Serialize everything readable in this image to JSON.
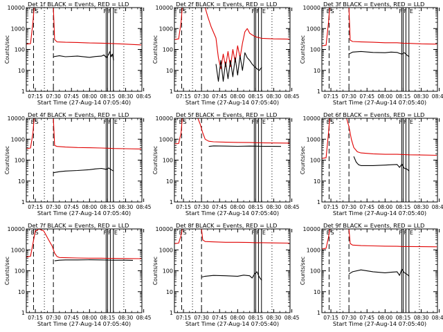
{
  "figure": {
    "xlabel": "Start Time (27-Aug-14 07:05:40)",
    "ylabel": "Counts/sec",
    "x_tick_labels": [
      "07:15",
      "07:30",
      "07:45",
      "08:00",
      "08:15",
      "08:30",
      "08:45"
    ],
    "y_tick_labels": [
      "1",
      "10",
      "100",
      "1000",
      "10000"
    ],
    "colors": {
      "events": "#000000",
      "lld": "#e00000",
      "frame": "#000000"
    }
  },
  "chart_data": [
    {
      "type": "line",
      "title": "Det  1f BLACK = Events, RED = LLD",
      "xlabel": "Start Time (27-Aug-14 07:05:40)",
      "ylabel": "Counts/sec",
      "x_unit": "minutes",
      "xlim": [
        7.5,
        103.5
      ],
      "ylim": [
        1,
        10000
      ],
      "yscale": "log",
      "markers": {
        "dashed": [
          13.5,
          30
        ],
        "dotted": [
          22.5,
          88.5
        ],
        "solid": [
          73.8,
          75,
          77.3,
          79.8
        ]
      },
      "marker_labels": [
        "E",
        "S",
        "F",
        "F",
        "E"
      ],
      "series": [
        {
          "name": "LLD",
          "color": "red",
          "x": [
            7.5,
            11,
            13,
            14,
            15,
            30,
            31,
            33,
            40,
            50,
            60,
            70,
            75,
            80,
            90,
            103
          ],
          "y": [
            180,
            190,
            2000,
            10000,
            10000,
            10000,
            300,
            230,
            220,
            215,
            205,
            200,
            195,
            190,
            180,
            165
          ]
        },
        {
          "name": "Events",
          "color": "black",
          "x": [
            30,
            35,
            40,
            50,
            60,
            65,
            70,
            72,
            74,
            76,
            77,
            78,
            79,
            80
          ],
          "y": [
            45,
            50,
            45,
            48,
            42,
            46,
            48,
            55,
            40,
            60,
            80,
            45,
            60,
            30
          ]
        }
      ]
    },
    {
      "type": "line",
      "title": "Det  2f BLACK = Events, RED = LLD",
      "xlabel": "Start Time (27-Aug-14 07:05:40)",
      "ylabel": "Counts/sec",
      "x_unit": "minutes",
      "xlim": [
        7.5,
        103.5
      ],
      "ylim": [
        1,
        10000
      ],
      "yscale": "log",
      "markers": {
        "dashed": [
          13.5,
          30
        ],
        "dotted": [
          22.5,
          88.5
        ],
        "solid": [
          73.8,
          75,
          77.3,
          79.8
        ]
      },
      "marker_labels": [
        "E",
        "S",
        "F",
        "F",
        "E"
      ],
      "series": [
        {
          "name": "LLD",
          "color": "red",
          "x": [
            7.5,
            11,
            13,
            14,
            15,
            33,
            35,
            38,
            42,
            44,
            46,
            48,
            50,
            52,
            54,
            56,
            58,
            60,
            62,
            64,
            66,
            68,
            70,
            72,
            75,
            80,
            90,
            103
          ],
          "y": [
            300,
            320,
            2000,
            10000,
            10000,
            10000,
            4000,
            1200,
            350,
            40,
            12,
            60,
            15,
            80,
            15,
            100,
            25,
            150,
            40,
            200,
            700,
            1000,
            600,
            500,
            400,
            340,
            320,
            310
          ]
        },
        {
          "name": "Events",
          "color": "black",
          "x": [
            42,
            44,
            46,
            48,
            50,
            52,
            54,
            56,
            58,
            60,
            62,
            64,
            66,
            68,
            70,
            72,
            74,
            76,
            78,
            80
          ],
          "y": [
            20,
            3,
            30,
            3,
            25,
            4,
            30,
            5,
            40,
            6,
            50,
            10,
            70,
            40,
            30,
            20,
            15,
            12,
            10,
            14
          ]
        }
      ]
    },
    {
      "type": "line",
      "title": "Det  3f BLACK = Events, RED = LLD",
      "xlabel": "Start Time (27-Aug-14 07:05:40)",
      "ylabel": "Counts/sec",
      "x_unit": "minutes",
      "xlim": [
        7.5,
        103.5
      ],
      "ylim": [
        1,
        10000
      ],
      "yscale": "log",
      "markers": {
        "dashed": [
          13.5,
          30
        ],
        "dotted": [
          22.5,
          88.5
        ],
        "solid": [
          73.8,
          75,
          77.3,
          79.8
        ]
      },
      "marker_labels": [
        "E",
        "S",
        "F",
        "F",
        "E"
      ],
      "series": [
        {
          "name": "LLD",
          "color": "red",
          "x": [
            7.5,
            11,
            13,
            14,
            15,
            30,
            31,
            33,
            40,
            50,
            60,
            70,
            75,
            80,
            90,
            103
          ],
          "y": [
            150,
            160,
            2000,
            10000,
            10000,
            10000,
            280,
            240,
            230,
            220,
            210,
            210,
            200,
            195,
            185,
            180
          ]
        },
        {
          "name": "Events",
          "color": "black",
          "x": [
            30,
            33,
            40,
            50,
            60,
            65,
            70,
            72,
            74,
            76,
            78,
            80
          ],
          "y": [
            60,
            75,
            80,
            72,
            70,
            75,
            72,
            65,
            60,
            70,
            55,
            45
          ]
        }
      ]
    },
    {
      "type": "line",
      "title": "Det  4f BLACK = Events, RED = LLD",
      "xlabel": "Start Time (27-Aug-14 07:05:40)",
      "ylabel": "Counts/sec",
      "x_unit": "minutes",
      "xlim": [
        7.5,
        103.5
      ],
      "ylim": [
        1,
        10000
      ],
      "yscale": "log",
      "markers": {
        "dashed": [
          13.5,
          30
        ],
        "dotted": [
          22.5,
          88.5
        ],
        "solid": [
          73.8,
          75,
          77.3,
          79.8
        ]
      },
      "marker_labels": [
        "E",
        "S",
        "F",
        "F",
        "E"
      ],
      "series": [
        {
          "name": "LLD",
          "color": "red",
          "x": [
            7.5,
            11,
            13,
            14,
            15,
            30,
            31,
            33,
            40,
            50,
            60,
            70,
            75,
            80,
            90,
            103
          ],
          "y": [
            350,
            380,
            2000,
            10000,
            10000,
            10000,
            500,
            450,
            420,
            400,
            390,
            380,
            370,
            360,
            350,
            340
          ]
        },
        {
          "name": "Events",
          "color": "black",
          "x": [
            30,
            35,
            40,
            50,
            60,
            65,
            70,
            72,
            74,
            76,
            78,
            80
          ],
          "y": [
            25,
            28,
            30,
            32,
            35,
            38,
            40,
            38,
            36,
            42,
            35,
            30
          ]
        }
      ]
    },
    {
      "type": "line",
      "title": "Det  5f BLACK = Events, RED = LLD",
      "xlabel": "Start Time (27-Aug-14 07:05:40)",
      "ylabel": "Counts/sec",
      "x_unit": "minutes",
      "xlim": [
        7.5,
        103.5
      ],
      "ylim": [
        1,
        10000
      ],
      "yscale": "log",
      "markers": {
        "dashed": [
          13.5,
          30
        ],
        "dotted": [
          22.5,
          88.5
        ],
        "solid": [
          73.8,
          75,
          77.3,
          79.8
        ]
      },
      "marker_labels": [
        "E",
        "S",
        "F",
        "F",
        "E"
      ],
      "series": [
        {
          "name": "LLD",
          "color": "red",
          "x": [
            7.5,
            11,
            13,
            14,
            15,
            27,
            29,
            31,
            33,
            36,
            40,
            50,
            60,
            70,
            75,
            80,
            90,
            103
          ],
          "y": [
            600,
            620,
            2000,
            10000,
            10000,
            10000,
            5000,
            2000,
            1000,
            800,
            750,
            720,
            700,
            690,
            680,
            670,
            660,
            650
          ]
        },
        {
          "name": "Events",
          "color": "black",
          "x": [
            36,
            40,
            50,
            60,
            70,
            75,
            80,
            90,
            96
          ],
          "y": [
            450,
            480,
            470,
            460,
            470,
            465,
            460,
            455,
            450
          ]
        }
      ]
    },
    {
      "type": "line",
      "title": "Det  6f BLACK = Events, RED = LLD",
      "xlabel": "Start Time (27-Aug-14 07:05:40)",
      "ylabel": "Counts/sec",
      "x_unit": "minutes",
      "xlim": [
        7.5,
        103.5
      ],
      "ylim": [
        1,
        10000
      ],
      "yscale": "log",
      "markers": {
        "dashed": [
          13.5,
          30
        ],
        "dotted": [
          22.5,
          88.5
        ],
        "solid": [
          73.8,
          75,
          77.3,
          79.8
        ]
      },
      "marker_labels": [
        "E",
        "S",
        "F",
        "F",
        "E"
      ],
      "series": [
        {
          "name": "LLD",
          "color": "red",
          "x": [
            7.5,
            11,
            13,
            14,
            15,
            28,
            30,
            32,
            34,
            37,
            40,
            50,
            60,
            70,
            75,
            80,
            90,
            103
          ],
          "y": [
            120,
            130,
            2000,
            10000,
            10000,
            10000,
            4000,
            1000,
            400,
            250,
            220,
            200,
            190,
            190,
            185,
            180,
            175,
            170
          ]
        },
        {
          "name": "Events",
          "color": "black",
          "x": [
            34,
            36,
            38,
            40,
            50,
            60,
            65,
            70,
            72,
            74,
            76,
            78,
            80
          ],
          "y": [
            150,
            80,
            60,
            55,
            55,
            58,
            60,
            62,
            45,
            65,
            40,
            38,
            30
          ]
        }
      ]
    },
    {
      "type": "line",
      "title": "Det  7f BLACK = Events, RED = LLD",
      "xlabel": "Start Time (27-Aug-14 07:05:40)",
      "ylabel": "Counts/sec",
      "x_unit": "minutes",
      "xlim": [
        7.5,
        103.5
      ],
      "ylim": [
        1,
        10000
      ],
      "yscale": "log",
      "markers": {
        "dashed": [
          13.5,
          30
        ],
        "dotted": [
          22.5,
          88.5
        ],
        "solid": [
          73.8,
          75,
          77.3,
          79.8
        ]
      },
      "marker_labels": [
        "E",
        "S",
        "F",
        "F",
        "E"
      ],
      "series": [
        {
          "name": "LLD",
          "color": "red",
          "x": [
            7.5,
            11,
            13,
            15,
            18,
            22,
            26,
            29,
            31,
            33,
            35,
            40,
            50,
            60,
            70,
            75,
            80,
            90,
            103
          ],
          "y": [
            450,
            500,
            2000,
            8000,
            10000,
            8000,
            3000,
            1500,
            700,
            480,
            430,
            420,
            410,
            400,
            400,
            395,
            390,
            385,
            380
          ]
        },
        {
          "name": "Events",
          "color": "black",
          "x": [
            31,
            35,
            40,
            50,
            60,
            70,
            75,
            80,
            90,
            96
          ],
          "y": [
            300,
            320,
            330,
            330,
            335,
            330,
            325,
            320,
            320,
            315
          ]
        }
      ]
    },
    {
      "type": "line",
      "title": "Det  8f BLACK = Events, RED = LLD",
      "xlabel": "Start Time (27-Aug-14 07:05:40)",
      "ylabel": "Counts/sec",
      "x_unit": "minutes",
      "xlim": [
        7.5,
        103.5
      ],
      "ylim": [
        1,
        10000
      ],
      "yscale": "log",
      "markers": {
        "dashed": [
          13.5,
          30
        ],
        "dotted": [
          22.5,
          88.5
        ],
        "solid": [
          73.8,
          75,
          77.3,
          79.8
        ]
      },
      "marker_labels": [
        "E",
        "S",
        "F",
        "F",
        "E"
      ],
      "series": [
        {
          "name": "LLD",
          "color": "red",
          "x": [
            7.5,
            11,
            13,
            14,
            15,
            30,
            31,
            33,
            40,
            50,
            60,
            70,
            75,
            80,
            90,
            103
          ],
          "y": [
            2000,
            2100,
            5000,
            10000,
            10000,
            10000,
            3000,
            2500,
            2400,
            2300,
            2300,
            2250,
            2200,
            2200,
            2150,
            2100
          ]
        },
        {
          "name": "Events",
          "color": "black",
          "x": [
            30,
            33,
            40,
            50,
            60,
            65,
            70,
            72,
            74,
            76,
            78,
            80
          ],
          "y": [
            50,
            55,
            60,
            58,
            55,
            62,
            58,
            45,
            70,
            90,
            50,
            35
          ]
        }
      ]
    },
    {
      "type": "line",
      "title": "Det  9f BLACK = Events, RED = LLD",
      "xlabel": "Start Time (27-Aug-14 07:05:40)",
      "ylabel": "Counts/sec",
      "x_unit": "minutes",
      "xlim": [
        7.5,
        103.5
      ],
      "ylim": [
        1,
        10000
      ],
      "yscale": "log",
      "markers": {
        "dashed": [
          13.5,
          30
        ],
        "dotted": [
          22.5,
          88.5
        ],
        "solid": [
          73.8,
          75,
          77.3,
          79.8
        ]
      },
      "marker_labels": [
        "E",
        "S",
        "F",
        "F",
        "E"
      ],
      "series": [
        {
          "name": "LLD",
          "color": "red",
          "x": [
            7.5,
            11,
            13,
            14,
            15,
            30,
            31,
            33,
            40,
            50,
            60,
            70,
            75,
            80,
            90,
            103
          ],
          "y": [
            1100,
            1200,
            4000,
            10000,
            10000,
            10000,
            2000,
            1700,
            1600,
            1550,
            1500,
            1480,
            1450,
            1450,
            1420,
            1400
          ]
        },
        {
          "name": "Events",
          "color": "black",
          "x": [
            30,
            33,
            40,
            50,
            60,
            65,
            70,
            72,
            74,
            76,
            78,
            80
          ],
          "y": [
            70,
            90,
            110,
            90,
            80,
            85,
            90,
            60,
            120,
            80,
            70,
            55
          ]
        }
      ]
    }
  ]
}
